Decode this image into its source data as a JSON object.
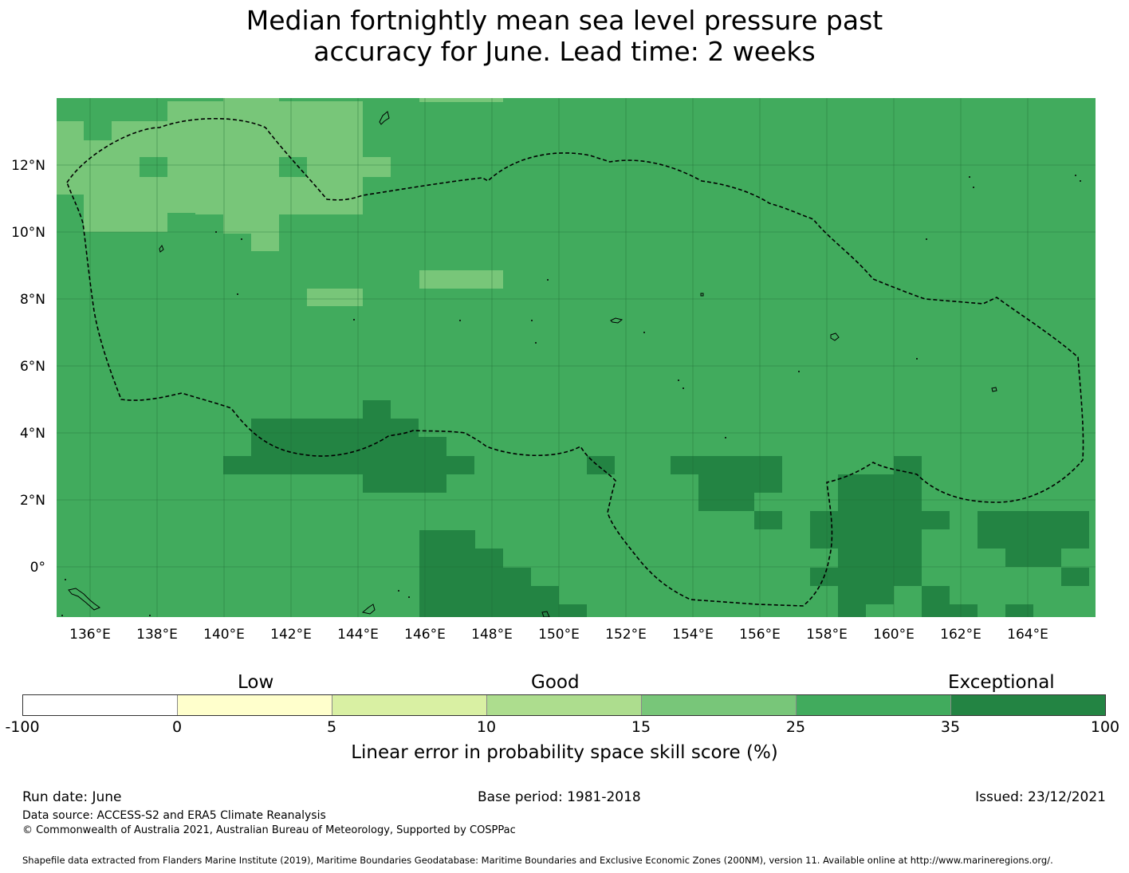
{
  "title_line1": "Median fortnightly mean sea level pressure past",
  "title_line2": "accuracy for June. Lead time: 2 weeks",
  "map": {
    "lon_labels": [
      "136°E",
      "138°E",
      "140°E",
      "142°E",
      "144°E",
      "146°E",
      "148°E",
      "150°E",
      "152°E",
      "154°E",
      "156°E",
      "158°E",
      "160°E",
      "162°E",
      "164°E"
    ],
    "lat_labels": [
      "12°N",
      "10°N",
      "8°N",
      "6°N",
      "4°N",
      "2°N",
      "0°"
    ],
    "colors": {
      "good": "#a8dc90",
      "high": "#78c679",
      "very_high": "#41ab5d",
      "exceptional": "#238443",
      "eez_line": "#000000"
    }
  },
  "legend": {
    "categories": [
      "Low",
      "Good",
      "Exceptional"
    ],
    "ticks": [
      "-100",
      "0",
      "5",
      "10",
      "15",
      "25",
      "35",
      "100"
    ],
    "colors": [
      "#ffffff",
      "#ffffcc",
      "#d9f0a3",
      "#addd8e",
      "#78c679",
      "#41ab5d",
      "#238443"
    ],
    "label": "Linear error in probability space skill score (%)"
  },
  "footer": {
    "run_date": "Run date: June",
    "base_period": "Base period: 1981-2018",
    "issued": "Issued: 23/12/2021",
    "data_source": "Data source: ACCESS-S2 and ERA5 Climate Reanalysis",
    "copyright": "© Commonwealth of Australia 2021, Australian Bureau of Meteorology, Supported by COSPPac",
    "shapefile": "Shapefile data extracted from Flanders Marine Institute (2019), Maritime Boundaries Geodatabase: Maritime Boundaries and Exclusive Economic Zones (200NM), version 11. Available online at http://www.marineregions.org/."
  }
}
